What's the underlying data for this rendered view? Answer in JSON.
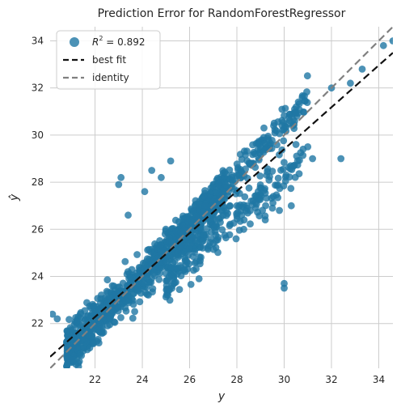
{
  "chart_data": {
    "type": "scatter",
    "title": "Prediction Error for RandomForestRegressor",
    "xlabel": "y",
    "ylabel": "ŷ",
    "xlim": [
      20.1,
      34.6
    ],
    "ylim": [
      20.1,
      34.6
    ],
    "xticks": [
      "22",
      "24",
      "26",
      "28",
      "30",
      "32",
      "34"
    ],
    "yticks": [
      "22",
      "24",
      "26",
      "28",
      "30",
      "32",
      "34"
    ],
    "grid": true,
    "legend_position": "top-left",
    "legend": {
      "r2_prefix": "R",
      "r2_exponent": "2",
      "r2_value": " = 0.892",
      "best_fit_label": "best fit",
      "identity_label": "identity"
    },
    "colors": {
      "points": "#1f77a4",
      "best_fit": "#111111",
      "identity": "#808080",
      "grid": "#cccccc",
      "plot_background": "#ffffff"
    },
    "best_fit": {
      "slope": 0.89,
      "intercept": 2.7
    },
    "identity": {
      "slope": 1,
      "intercept": 0
    },
    "series": [
      {
        "dense_cloud": {
          "x_range": [
            20.8,
            27.5
          ],
          "slope": 1.0,
          "intercept": 0.0,
          "spread": 0.45,
          "count": 900
        },
        "upper_band": {
          "x_range": [
            24.5,
            31.0
          ],
          "slope": 1.05,
          "intercept": -1.0,
          "spread": 0.35,
          "count": 320
        },
        "lower_band": {
          "x_range": [
            25.0,
            30.8
          ],
          "slope": 0.85,
          "intercept": 2.7,
          "spread": 0.45,
          "count": 220
        },
        "points": [
          [
            20.2,
            22.4
          ],
          [
            20.4,
            22.2
          ],
          [
            21.6,
            21.7
          ],
          [
            22.0,
            22.3
          ],
          [
            22.3,
            21.8
          ],
          [
            23.0,
            27.9
          ],
          [
            23.1,
            28.2
          ],
          [
            23.4,
            26.6
          ],
          [
            24.1,
            27.6
          ],
          [
            24.4,
            28.5
          ],
          [
            24.8,
            28.2
          ],
          [
            25.2,
            28.9
          ],
          [
            25.6,
            25.6
          ],
          [
            25.9,
            26.4
          ],
          [
            26.0,
            25.2
          ],
          [
            26.4,
            23.9
          ],
          [
            27.0,
            25.4
          ],
          [
            27.3,
            26.3
          ],
          [
            28.0,
            27.0
          ],
          [
            28.2,
            26.6
          ],
          [
            28.6,
            27.2
          ],
          [
            28.9,
            27.6
          ],
          [
            29.2,
            26.4
          ],
          [
            29.5,
            26.9
          ],
          [
            29.8,
            26.8
          ],
          [
            30.0,
            23.7
          ],
          [
            30.0,
            23.5
          ],
          [
            30.3,
            27.0
          ],
          [
            30.5,
            29.6
          ],
          [
            30.8,
            29.4
          ],
          [
            31.0,
            29.5
          ],
          [
            31.2,
            29.0
          ],
          [
            32.0,
            32.0
          ],
          [
            32.4,
            29.0
          ],
          [
            32.8,
            32.2
          ],
          [
            33.3,
            32.8
          ],
          [
            34.2,
            33.8
          ],
          [
            34.6,
            34.0
          ]
        ]
      }
    ]
  }
}
